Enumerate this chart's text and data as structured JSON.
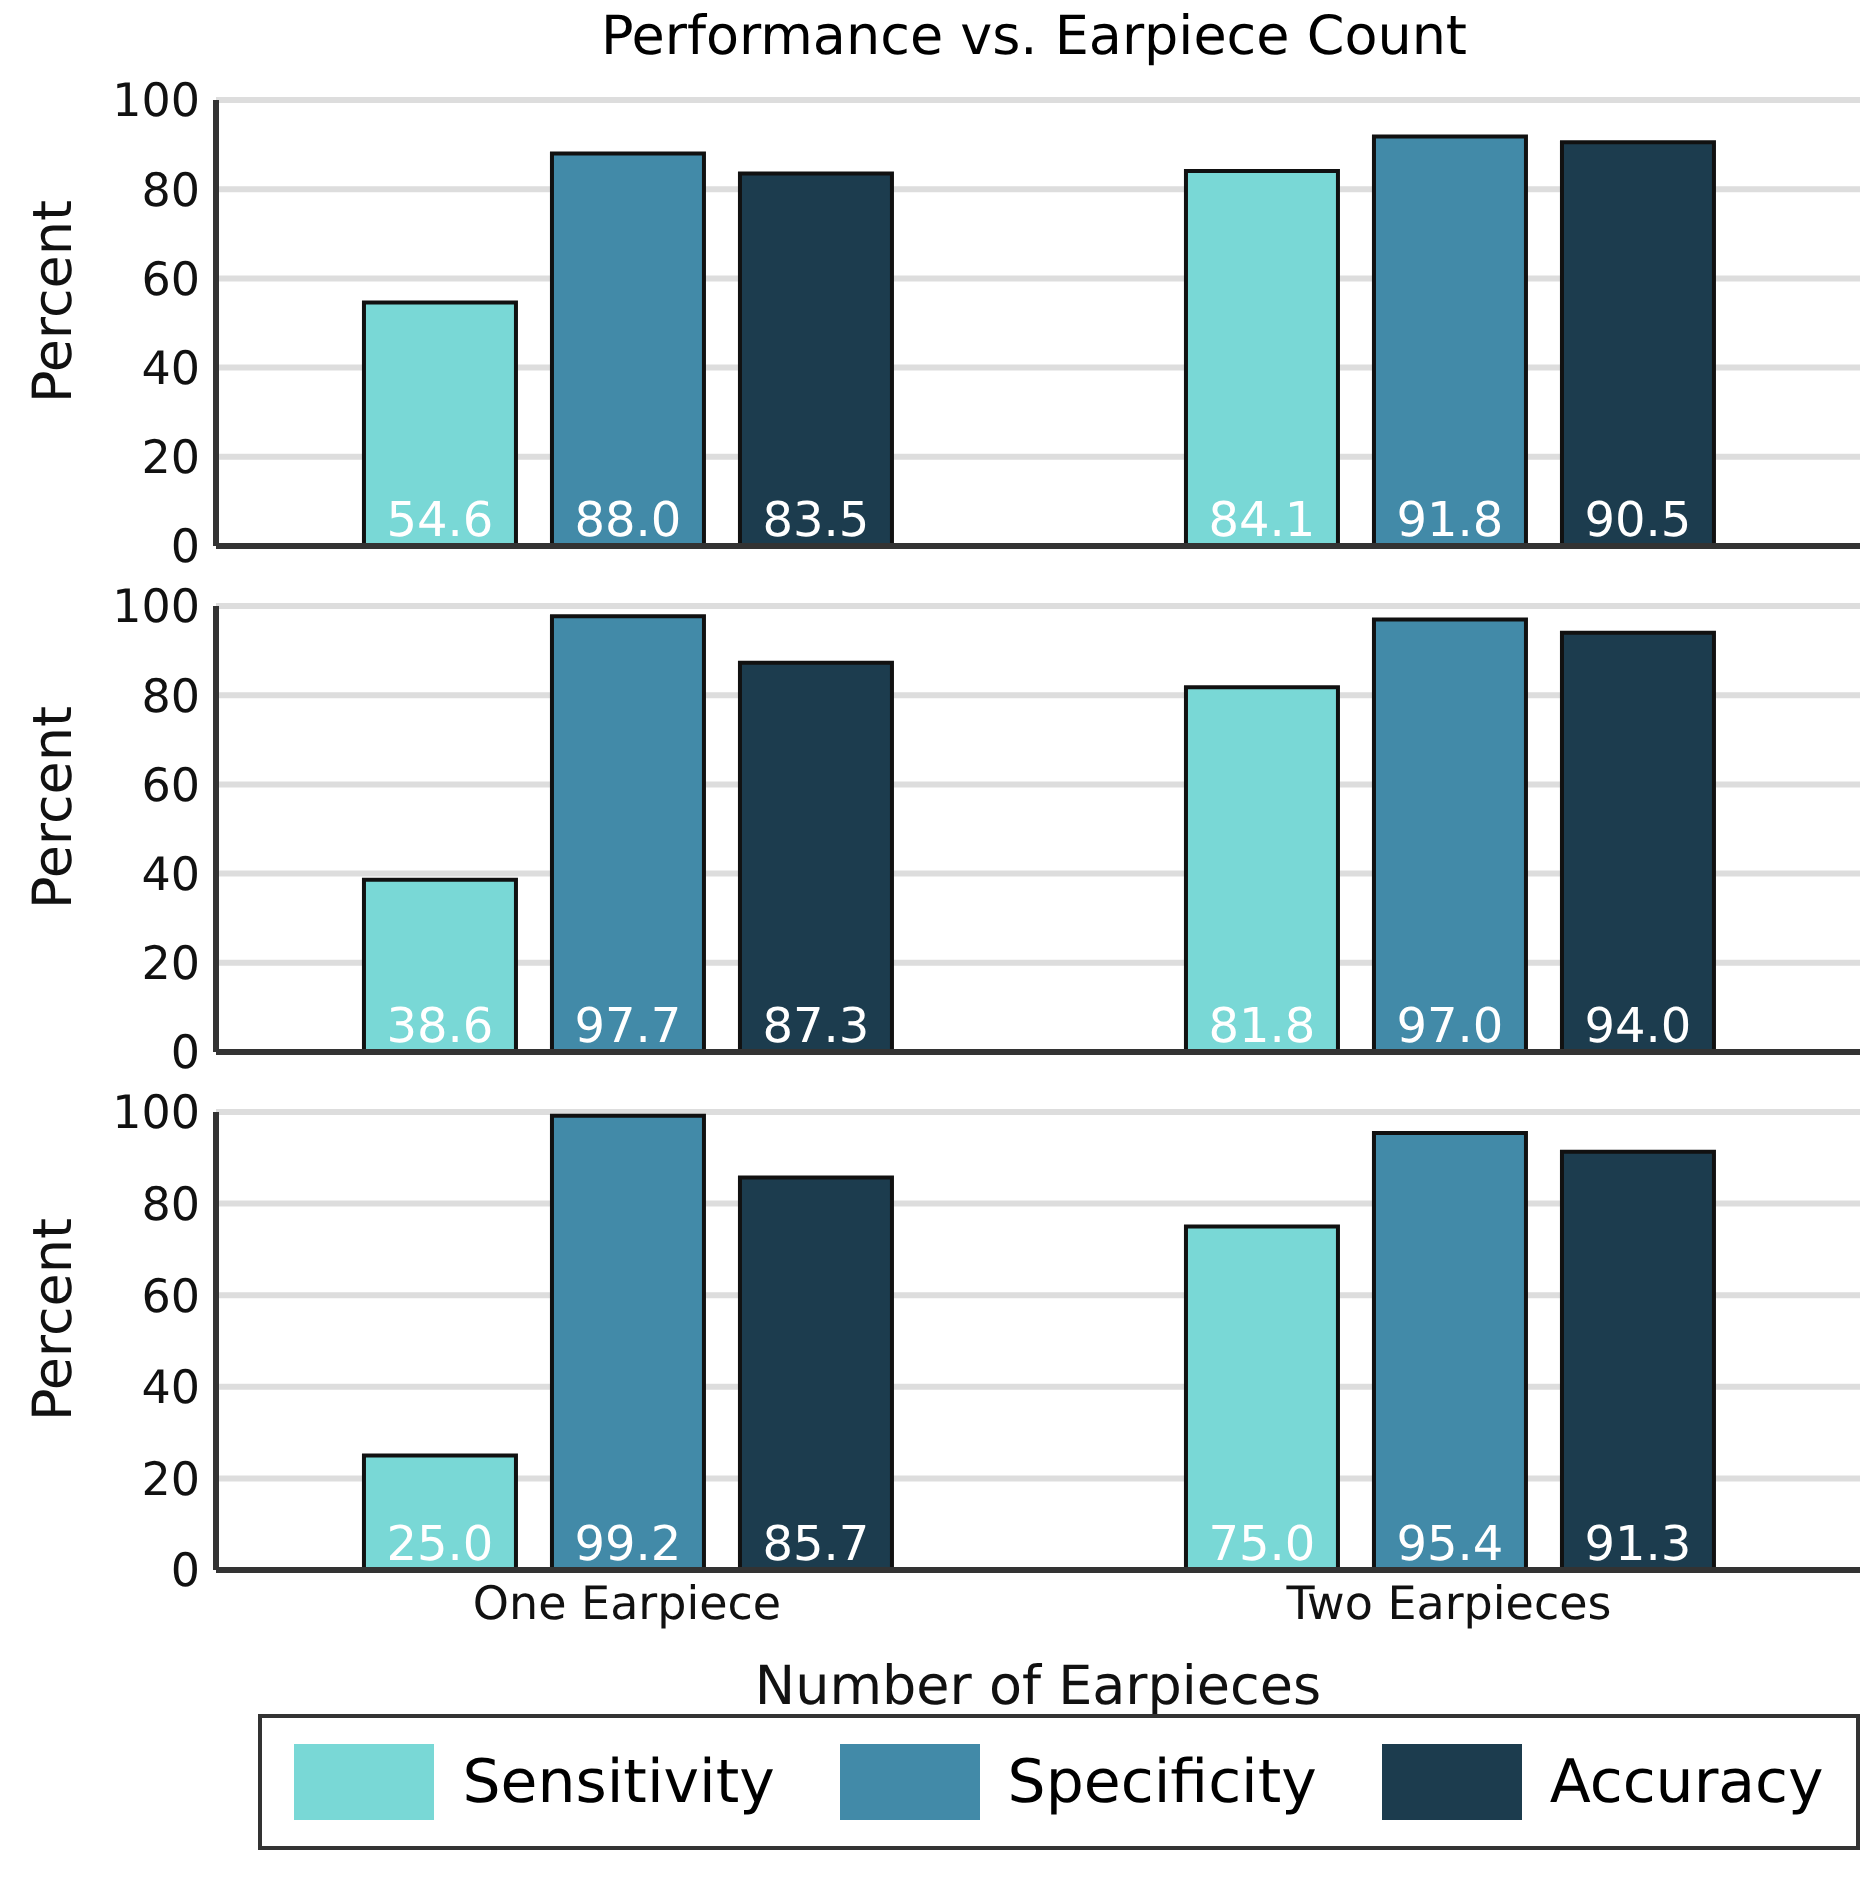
{
  "chart_data": [
    {
      "type": "bar",
      "title": "Performance vs. Earpiece Count",
      "ylabel": "Percent",
      "categories": [
        null,
        null
      ],
      "ylim": [
        0,
        100
      ],
      "yticks": [
        0,
        20,
        40,
        60,
        80,
        100
      ],
      "grid": "y",
      "tick_labels": "y",
      "data_labels": true,
      "legend": false,
      "series": [
        {
          "color": "#79d8d6",
          "values": [
            54.6,
            84.1
          ],
          "value_labels": [
            "54.6",
            "84.1"
          ]
        },
        {
          "color": "#428aa8",
          "values": [
            88.0,
            91.8
          ],
          "value_labels": [
            "88.0",
            "91.8"
          ]
        },
        {
          "color": "#1c3c4e",
          "values": [
            83.5,
            90.5
          ],
          "value_labels": [
            "83.5",
            "90.5"
          ]
        }
      ]
    },
    {
      "type": "bar",
      "ylabel": "Percent",
      "categories": [
        null,
        null
      ],
      "ylim": [
        0,
        100
      ],
      "yticks": [
        0,
        20,
        40,
        60,
        80,
        100
      ],
      "grid": "y",
      "tick_labels": "y",
      "data_labels": true,
      "legend": false,
      "series": [
        {
          "color": "#79d8d6",
          "values": [
            38.6,
            81.8
          ],
          "value_labels": [
            "38.6",
            "81.8"
          ]
        },
        {
          "color": "#428aa8",
          "values": [
            97.7,
            97.0
          ],
          "value_labels": [
            "97.7",
            "97.0"
          ]
        },
        {
          "color": "#1c3c4e",
          "values": [
            87.3,
            94.0
          ],
          "value_labels": [
            "87.3",
            "94.0"
          ]
        }
      ]
    },
    {
      "type": "bar",
      "ylabel": "Percent",
      "xlabel": "Number of Earpieces",
      "categories": [
        "One Earpiece",
        "Two Earpieces"
      ],
      "ylim": [
        0,
        100
      ],
      "yticks": [
        0,
        20,
        40,
        60,
        80,
        100
      ],
      "grid": "y",
      "data_labels": true,
      "legend": "bottom",
      "series": [
        {
          "name": "Sensitivity",
          "color": "#79d8d6",
          "values": [
            25.0,
            75.0
          ],
          "value_labels": [
            "25.0",
            "75.0"
          ]
        },
        {
          "name": "Specificity",
          "color": "#428aa8",
          "values": [
            99.2,
            95.4
          ],
          "value_labels": [
            "99.2",
            "95.4"
          ]
        },
        {
          "name": "Accuracy",
          "color": "#1c3c4e",
          "values": [
            85.7,
            91.3
          ],
          "value_labels": [
            "85.7",
            "91.3"
          ]
        }
      ]
    }
  ]
}
